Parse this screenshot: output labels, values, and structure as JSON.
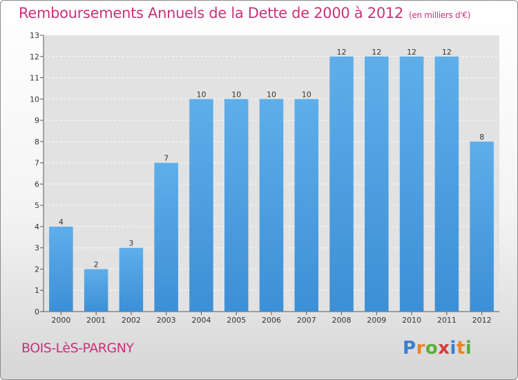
{
  "title": "Remboursements Annuels de la Dette de 2000 à 2012",
  "title_unit": "(en milliers d'€)",
  "town": "BOIS-LèS-PARGNY",
  "logo": {
    "letters": [
      "P",
      "r",
      "o",
      "x",
      "i",
      "t",
      "i"
    ],
    "colors": [
      "#3a7fd0",
      "#e9832b",
      "#5aae3c",
      "#d63c3c",
      "#3a7fd0",
      "#e9832b",
      "#5aae3c"
    ]
  },
  "colors": {
    "bar": "#3d8fd6",
    "bar_light": "#5eaeea",
    "plot_bg": "#e2e2e2",
    "title": "#c8327a"
  },
  "chart_data": {
    "type": "bar",
    "categories": [
      "2000",
      "2001",
      "2002",
      "2003",
      "2004",
      "2005",
      "2006",
      "2007",
      "2008",
      "2009",
      "2010",
      "2011",
      "2012"
    ],
    "values": [
      4,
      2,
      3,
      7,
      10,
      10,
      10,
      10,
      12,
      12,
      12,
      12,
      8
    ],
    "title": "Remboursements Annuels de la Dette de 2000 à 2012",
    "ylim": [
      0,
      13
    ],
    "yticks": [
      0,
      1,
      2,
      3,
      4,
      5,
      6,
      7,
      8,
      9,
      10,
      11,
      12,
      13
    ],
    "grid": true
  }
}
